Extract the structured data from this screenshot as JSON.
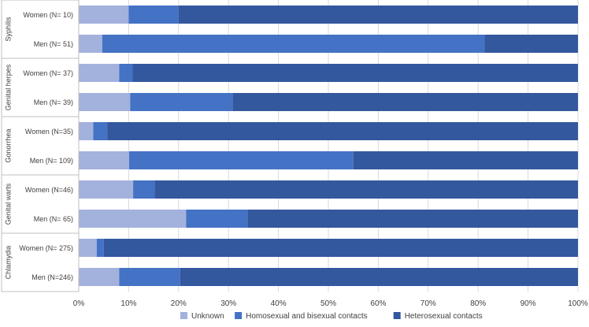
{
  "chart_data": {
    "type": "bar",
    "orientation": "horizontal",
    "stacked": true,
    "percent_stacked": true,
    "title": "",
    "xlabel": "",
    "ylabel": "",
    "xlim": [
      0,
      100
    ],
    "x_ticks": [
      "0%",
      "10%",
      "20%",
      "30%",
      "40%",
      "50%",
      "60%",
      "70%",
      "80%",
      "90%",
      "100%"
    ],
    "grid": true,
    "legend_position": "bottom",
    "groups": [
      {
        "label": "Syphilis",
        "categories": [
          "Women (N= 10)",
          "Men (N= 51)"
        ]
      },
      {
        "label": "Genital herpes",
        "categories": [
          "Women (N= 37)",
          "Men (N= 39)"
        ]
      },
      {
        "label": "Gonorrhea",
        "categories": [
          "Women (N=35)",
          "Men (N= 109)"
        ]
      },
      {
        "label": "Genital warts",
        "categories": [
          "Women  (N=46)",
          "Men (N= 65)"
        ]
      },
      {
        "label": "Chlamydia",
        "categories": [
          "Women  (N= 275)",
          "Men (N=246)"
        ]
      }
    ],
    "categories": [
      "Women (N= 10)",
      "Men (N= 51)",
      "Women (N= 37)",
      "Men (N= 39)",
      "Women (N=35)",
      "Men (N= 109)",
      "Women  (N=46)",
      "Men (N= 65)",
      "Women  (N= 275)",
      "Men (N=246)"
    ],
    "series": [
      {
        "name": "Unknown",
        "color": "#a3b1dd",
        "values": [
          10,
          4.7,
          8.1,
          10.3,
          2.9,
          10.1,
          10.9,
          21.5,
          3.6,
          8.1
        ]
      },
      {
        "name": "Homosexual and bisexual contacts",
        "color": "#4472c4",
        "values": [
          10,
          76.6,
          2.7,
          20.5,
          2.8,
          44.9,
          4.3,
          12.3,
          1.4,
          12.2
        ]
      },
      {
        "name": "Heterosexual contacts",
        "color": "#34589e",
        "values": [
          80,
          18.7,
          89.2,
          69.2,
          94.3,
          45.0,
          84.8,
          66.2,
          95.0,
          79.7
        ]
      }
    ]
  }
}
